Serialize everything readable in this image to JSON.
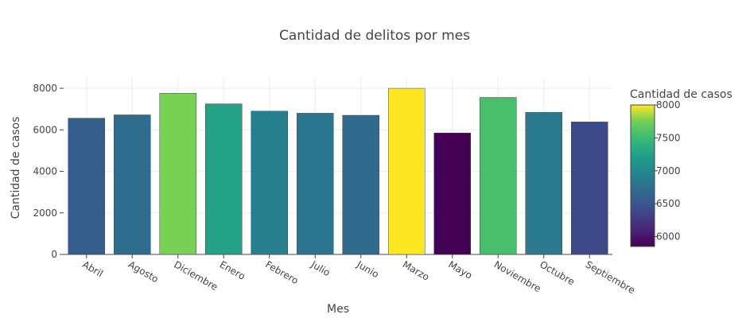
{
  "chart_data": {
    "type": "bar",
    "title": "Cantidad de delitos por mes",
    "xlabel": "Mes",
    "ylabel": "Cantidad de casos",
    "categories": [
      "Abril",
      "Agosto",
      "Diciembre",
      "Enero",
      "Febrero",
      "Julio",
      "Junio",
      "Marzo",
      "Mayo",
      "Noviembre",
      "Octubre",
      "Septiembre"
    ],
    "values": [
      6560,
      6720,
      7760,
      7250,
      6900,
      6800,
      6700,
      8000,
      5850,
      7560,
      6840,
      6380
    ],
    "ylim": [
      0,
      8500
    ],
    "yticks": [
      0,
      2000,
      4000,
      6000,
      8000
    ],
    "grid": true,
    "colorscale": "viridis",
    "colorbar": {
      "title": "Cantidad de casos",
      "range": [
        5850,
        8000
      ],
      "ticks": [
        6000,
        6500,
        7000,
        7500,
        8000
      ]
    }
  }
}
